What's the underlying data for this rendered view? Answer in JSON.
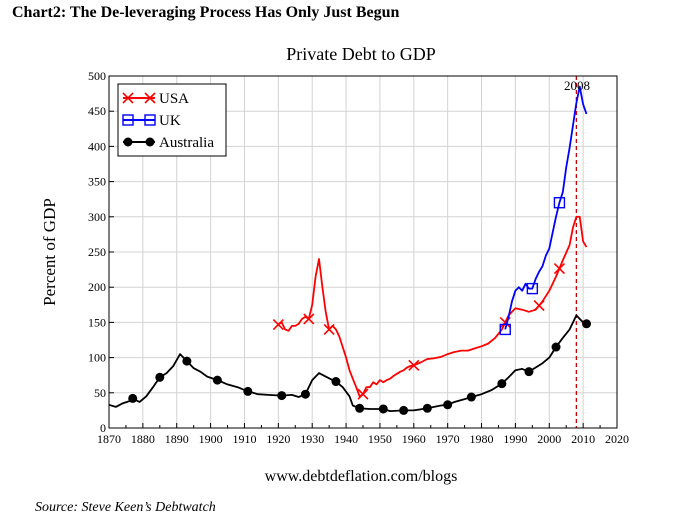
{
  "figure": {
    "heading": "Chart2:  The De-leveraging Process Has Only Just Begun",
    "source": "Source: Steve Keen’s Debtwatch"
  },
  "chart_data": {
    "type": "line",
    "title": "Private Debt to GDP",
    "xlabel": "www.debtdeflation.com/blogs",
    "ylabel": "Percent of GDP",
    "xlim": [
      1870,
      2020
    ],
    "ylim": [
      0,
      500
    ],
    "x_ticks": [
      1870,
      1880,
      1890,
      1900,
      1910,
      1920,
      1930,
      1940,
      1950,
      1960,
      1970,
      1980,
      1990,
      2000,
      2010,
      2020
    ],
    "y_ticks": [
      0,
      50,
      100,
      150,
      200,
      250,
      300,
      350,
      400,
      450,
      500
    ],
    "grid": true,
    "legend_position": "top-left",
    "annotations": [
      {
        "text": "2008",
        "x": 2008
      }
    ],
    "series": [
      {
        "name": "USA",
        "color": "#ff0000",
        "marker": "x",
        "markers_x": [
          1920,
          1929,
          1935,
          1945,
          1960,
          1987,
          1997,
          2003
        ],
        "points": [
          [
            1920,
            147
          ],
          [
            1921,
            150
          ],
          [
            1922,
            140
          ],
          [
            1923,
            138
          ],
          [
            1924,
            145
          ],
          [
            1925,
            145
          ],
          [
            1926,
            148
          ],
          [
            1927,
            155
          ],
          [
            1928,
            158
          ],
          [
            1929,
            155
          ],
          [
            1930,
            175
          ],
          [
            1931,
            215
          ],
          [
            1932,
            240
          ],
          [
            1933,
            200
          ],
          [
            1934,
            165
          ],
          [
            1935,
            140
          ],
          [
            1936,
            145
          ],
          [
            1937,
            140
          ],
          [
            1938,
            130
          ],
          [
            1939,
            115
          ],
          [
            1940,
            100
          ],
          [
            1941,
            82
          ],
          [
            1942,
            70
          ],
          [
            1943,
            58
          ],
          [
            1944,
            45
          ],
          [
            1945,
            48
          ],
          [
            1946,
            58
          ],
          [
            1947,
            58
          ],
          [
            1948,
            65
          ],
          [
            1949,
            62
          ],
          [
            1950,
            68
          ],
          [
            1951,
            65
          ],
          [
            1952,
            68
          ],
          [
            1953,
            70
          ],
          [
            1954,
            74
          ],
          [
            1955,
            77
          ],
          [
            1956,
            80
          ],
          [
            1957,
            82
          ],
          [
            1958,
            86
          ],
          [
            1959,
            88
          ],
          [
            1960,
            89
          ],
          [
            1962,
            93
          ],
          [
            1964,
            98
          ],
          [
            1966,
            99
          ],
          [
            1968,
            101
          ],
          [
            1970,
            105
          ],
          [
            1972,
            108
          ],
          [
            1974,
            110
          ],
          [
            1976,
            110
          ],
          [
            1978,
            113
          ],
          [
            1980,
            116
          ],
          [
            1982,
            120
          ],
          [
            1984,
            128
          ],
          [
            1986,
            140
          ],
          [
            1987,
            150
          ],
          [
            1988,
            160
          ],
          [
            1990,
            170
          ],
          [
            1992,
            168
          ],
          [
            1994,
            165
          ],
          [
            1996,
            168
          ],
          [
            1998,
            180
          ],
          [
            2000,
            195
          ],
          [
            2002,
            215
          ],
          [
            2004,
            238
          ],
          [
            2006,
            260
          ],
          [
            2007,
            285
          ],
          [
            2008,
            300
          ],
          [
            2009,
            300
          ],
          [
            2010,
            265
          ],
          [
            2011,
            257
          ]
        ]
      },
      {
        "name": "UK",
        "color": "#0000ff",
        "marker": "square",
        "markers_x": [
          1987,
          1995,
          2003
        ],
        "points": [
          [
            1987,
            140
          ],
          [
            1988,
            158
          ],
          [
            1989,
            180
          ],
          [
            1990,
            195
          ],
          [
            1991,
            200
          ],
          [
            1992,
            195
          ],
          [
            1993,
            205
          ],
          [
            1994,
            198
          ],
          [
            1995,
            198
          ],
          [
            1996,
            212
          ],
          [
            1997,
            222
          ],
          [
            1998,
            230
          ],
          [
            1999,
            245
          ],
          [
            2000,
            255
          ],
          [
            2001,
            278
          ],
          [
            2002,
            300
          ],
          [
            2003,
            320
          ],
          [
            2004,
            335
          ],
          [
            2005,
            370
          ],
          [
            2006,
            398
          ],
          [
            2007,
            430
          ],
          [
            2008,
            462
          ],
          [
            2009,
            485
          ],
          [
            2010,
            460
          ],
          [
            2011,
            446
          ]
        ]
      },
      {
        "name": "Australia",
        "color": "#000000",
        "marker": "circle",
        "markers_x": [
          1877,
          1885,
          1893,
          1902,
          1911,
          1921,
          1928,
          1937,
          1944,
          1951,
          1957,
          1964,
          1970,
          1977,
          1986,
          1994,
          2002,
          2011
        ],
        "points": [
          [
            1870,
            33
          ],
          [
            1872,
            30
          ],
          [
            1874,
            35
          ],
          [
            1876,
            38
          ],
          [
            1877,
            42
          ],
          [
            1879,
            37
          ],
          [
            1881,
            45
          ],
          [
            1883,
            58
          ],
          [
            1885,
            72
          ],
          [
            1887,
            78
          ],
          [
            1889,
            88
          ],
          [
            1891,
            105
          ],
          [
            1893,
            95
          ],
          [
            1895,
            85
          ],
          [
            1897,
            80
          ],
          [
            1899,
            73
          ],
          [
            1902,
            68
          ],
          [
            1905,
            62
          ],
          [
            1908,
            58
          ],
          [
            1911,
            52
          ],
          [
            1914,
            48
          ],
          [
            1917,
            47
          ],
          [
            1921,
            46
          ],
          [
            1924,
            47
          ],
          [
            1926,
            44
          ],
          [
            1928,
            48
          ],
          [
            1930,
            68
          ],
          [
            1932,
            78
          ],
          [
            1934,
            73
          ],
          [
            1936,
            68
          ],
          [
            1937,
            66
          ],
          [
            1939,
            58
          ],
          [
            1941,
            45
          ],
          [
            1942,
            32
          ],
          [
            1944,
            28
          ],
          [
            1947,
            27
          ],
          [
            1949,
            27
          ],
          [
            1951,
            27
          ],
          [
            1953,
            24
          ],
          [
            1957,
            25
          ],
          [
            1960,
            25
          ],
          [
            1964,
            28
          ],
          [
            1966,
            30
          ],
          [
            1968,
            32
          ],
          [
            1970,
            33
          ],
          [
            1972,
            37
          ],
          [
            1975,
            41
          ],
          [
            1977,
            44
          ],
          [
            1980,
            48
          ],
          [
            1983,
            54
          ],
          [
            1986,
            63
          ],
          [
            1988,
            72
          ],
          [
            1990,
            82
          ],
          [
            1992,
            84
          ],
          [
            1994,
            80
          ],
          [
            1996,
            86
          ],
          [
            1998,
            92
          ],
          [
            2000,
            100
          ],
          [
            2002,
            115
          ],
          [
            2004,
            128
          ],
          [
            2006,
            140
          ],
          [
            2008,
            160
          ],
          [
            2009,
            155
          ],
          [
            2010,
            150
          ],
          [
            2011,
            148
          ]
        ]
      }
    ]
  }
}
